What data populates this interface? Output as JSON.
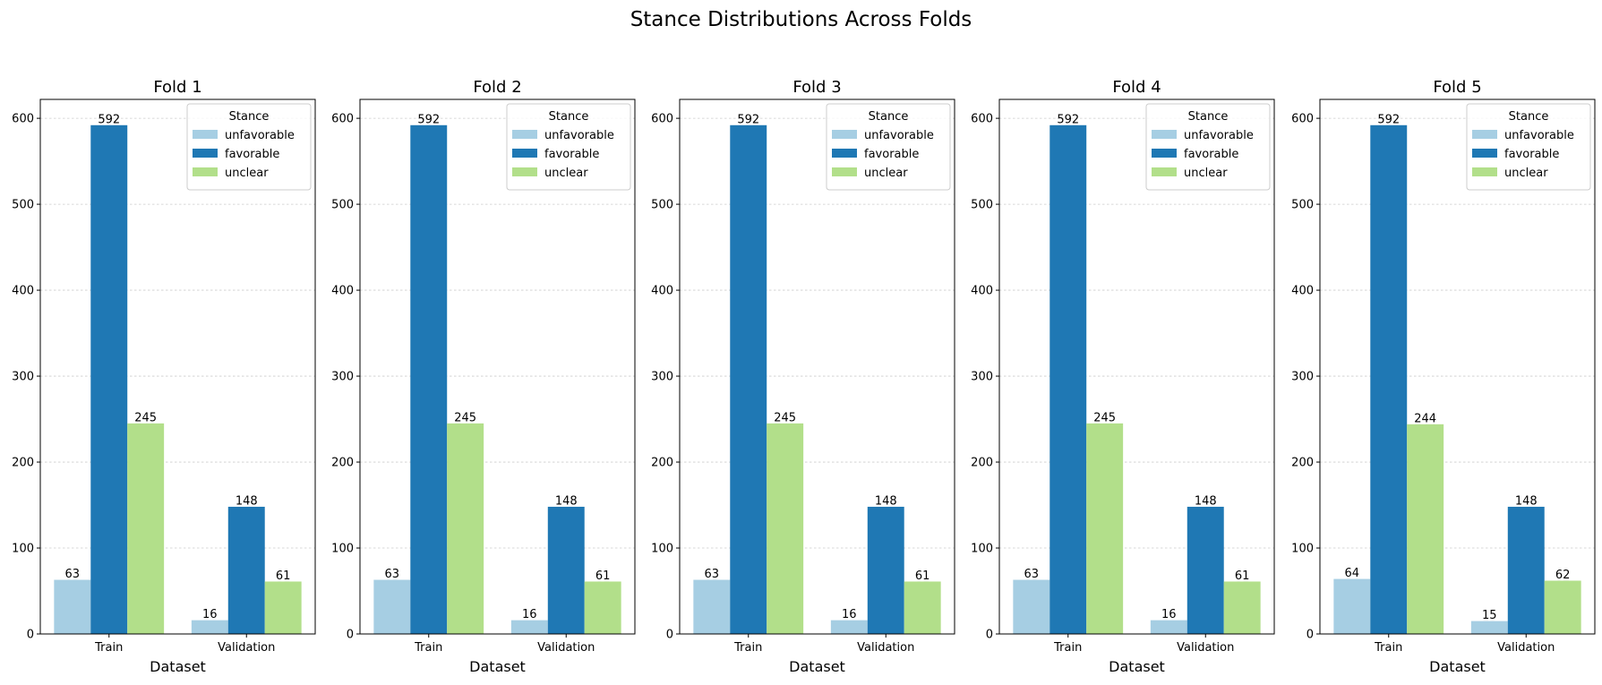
{
  "chart_data": {
    "type": "bar",
    "title": "Stance Distributions Across Folds",
    "colors": {
      "unfavorable": "#a6cee3",
      "favorable": "#1f78b4",
      "unclear": "#b2df8a"
    },
    "panels": [
      {
        "title": "Fold 1",
        "xlabel": "Dataset",
        "categories": [
          "Train",
          "Validation"
        ],
        "ylim": [
          0,
          622
        ],
        "yticks": [
          0,
          100,
          200,
          300,
          400,
          500,
          600
        ],
        "legend": {
          "title": "Stance",
          "position": "top-right"
        },
        "series": [
          {
            "name": "unfavorable",
            "values": [
              63,
              16
            ]
          },
          {
            "name": "favorable",
            "values": [
              592,
              148
            ]
          },
          {
            "name": "unclear",
            "values": [
              245,
              61
            ]
          }
        ]
      },
      {
        "title": "Fold 2",
        "xlabel": "Dataset",
        "categories": [
          "Train",
          "Validation"
        ],
        "ylim": [
          0,
          622
        ],
        "yticks": [
          0,
          100,
          200,
          300,
          400,
          500,
          600
        ],
        "legend": {
          "title": "Stance",
          "position": "top-right"
        },
        "series": [
          {
            "name": "unfavorable",
            "values": [
              63,
              16
            ]
          },
          {
            "name": "favorable",
            "values": [
              592,
              148
            ]
          },
          {
            "name": "unclear",
            "values": [
              245,
              61
            ]
          }
        ]
      },
      {
        "title": "Fold 3",
        "xlabel": "Dataset",
        "categories": [
          "Train",
          "Validation"
        ],
        "ylim": [
          0,
          622
        ],
        "yticks": [
          0,
          100,
          200,
          300,
          400,
          500,
          600
        ],
        "legend": {
          "title": "Stance",
          "position": "top-right"
        },
        "series": [
          {
            "name": "unfavorable",
            "values": [
              63,
              16
            ]
          },
          {
            "name": "favorable",
            "values": [
              592,
              148
            ]
          },
          {
            "name": "unclear",
            "values": [
              245,
              61
            ]
          }
        ]
      },
      {
        "title": "Fold 4",
        "xlabel": "Dataset",
        "categories": [
          "Train",
          "Validation"
        ],
        "ylim": [
          0,
          622
        ],
        "yticks": [
          0,
          100,
          200,
          300,
          400,
          500,
          600
        ],
        "legend": {
          "title": "Stance",
          "position": "top-right"
        },
        "series": [
          {
            "name": "unfavorable",
            "values": [
              63,
              16
            ]
          },
          {
            "name": "favorable",
            "values": [
              592,
              148
            ]
          },
          {
            "name": "unclear",
            "values": [
              245,
              61
            ]
          }
        ]
      },
      {
        "title": "Fold 5",
        "xlabel": "Dataset",
        "categories": [
          "Train",
          "Validation"
        ],
        "ylim": [
          0,
          622
        ],
        "yticks": [
          0,
          100,
          200,
          300,
          400,
          500,
          600
        ],
        "legend": {
          "title": "Stance",
          "position": "top-right"
        },
        "series": [
          {
            "name": "unfavorable",
            "values": [
              64,
              15
            ]
          },
          {
            "name": "favorable",
            "values": [
              592,
              148
            ]
          },
          {
            "name": "unclear",
            "values": [
              244,
              62
            ]
          }
        ]
      }
    ]
  }
}
